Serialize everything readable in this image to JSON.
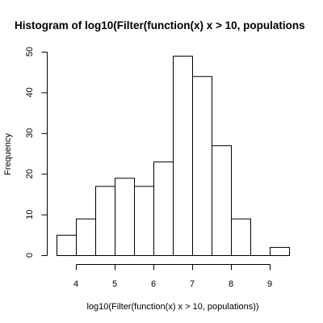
{
  "chart_data": {
    "type": "bar",
    "title": "Histogram of log10(Filter(function(x) x > 10, populations",
    "xlabel": "log10(Filter(function(x) x > 10, populations))",
    "ylabel": "Frequency",
    "bins": [
      {
        "start": 3.5,
        "end": 4.0,
        "count": 5
      },
      {
        "start": 4.0,
        "end": 4.5,
        "count": 9
      },
      {
        "start": 4.5,
        "end": 5.0,
        "count": 17
      },
      {
        "start": 5.0,
        "end": 5.5,
        "count": 19
      },
      {
        "start": 5.5,
        "end": 6.0,
        "count": 17
      },
      {
        "start": 6.0,
        "end": 6.5,
        "count": 23
      },
      {
        "start": 6.5,
        "end": 7.0,
        "count": 49
      },
      {
        "start": 7.0,
        "end": 7.5,
        "count": 44
      },
      {
        "start": 7.5,
        "end": 8.0,
        "count": 27
      },
      {
        "start": 8.0,
        "end": 8.5,
        "count": 9
      },
      {
        "start": 8.5,
        "end": 9.0,
        "count": 0
      },
      {
        "start": 9.0,
        "end": 9.5,
        "count": 2
      }
    ],
    "xticks": [
      4,
      5,
      6,
      7,
      8,
      9
    ],
    "yticks": [
      0,
      10,
      20,
      30,
      40,
      50
    ],
    "xlim": [
      3.5,
      9.5
    ],
    "ylim": [
      0,
      50
    ],
    "grid": false,
    "legend": "none"
  }
}
